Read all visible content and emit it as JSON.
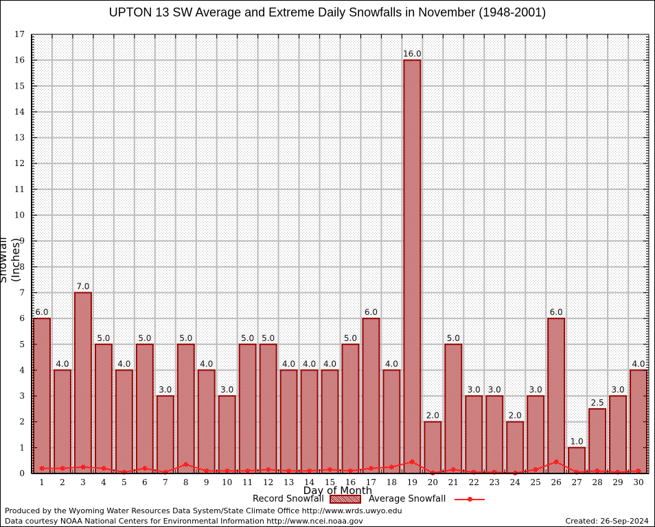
{
  "chart_data": {
    "type": "bar",
    "title": "UPTON 13 SW Average and Extreme Daily Snowfalls in November (1948-2001)",
    "xlabel": "Day of Month",
    "ylabel": "Snowfall (Inches)",
    "ylim": [
      0,
      17
    ],
    "yticks": [
      "0",
      "1",
      "2",
      "3",
      "4",
      "5",
      "6",
      "7",
      "8",
      "9",
      "10",
      "11",
      "12",
      "13",
      "14",
      "15",
      "16",
      "17"
    ],
    "categories": [
      "1",
      "2",
      "3",
      "4",
      "5",
      "6",
      "7",
      "8",
      "9",
      "10",
      "11",
      "12",
      "13",
      "14",
      "15",
      "16",
      "17",
      "18",
      "19",
      "20",
      "21",
      "22",
      "23",
      "24",
      "25",
      "26",
      "27",
      "28",
      "29",
      "30"
    ],
    "grid": true,
    "legend_position": "bottom",
    "series": [
      {
        "name": "Record Snowfall",
        "type": "bar",
        "color": "#990000",
        "values": [
          6.0,
          4.0,
          7.0,
          5.0,
          4.0,
          5.0,
          3.0,
          5.0,
          4.0,
          3.0,
          5.0,
          5.0,
          4.0,
          4.0,
          4.0,
          5.0,
          6.0,
          4.0,
          16.0,
          2.0,
          5.0,
          3.0,
          3.0,
          2.0,
          3.0,
          6.0,
          1.0,
          2.5,
          3.0,
          4.0
        ],
        "labels": [
          "6.0",
          "4.0",
          "7.0",
          "5.0",
          "4.0",
          "5.0",
          "3.0",
          "5.0",
          "4.0",
          "3.0",
          "5.0",
          "5.0",
          "4.0",
          "4.0",
          "4.0",
          "5.0",
          "6.0",
          "4.0",
          "16.0",
          "2.0",
          "5.0",
          "3.0",
          "3.0",
          "2.0",
          "3.0",
          "6.0",
          "1.0",
          "2.5",
          "3.0",
          "4.0"
        ]
      },
      {
        "name": "Average Snowfall",
        "type": "line",
        "color": "#ff2020",
        "values": [
          0.2,
          0.2,
          0.25,
          0.2,
          0.05,
          0.2,
          0.05,
          0.35,
          0.1,
          0.1,
          0.1,
          0.15,
          0.1,
          0.1,
          0.15,
          0.1,
          0.2,
          0.25,
          0.45,
          0.02,
          0.15,
          0.05,
          0.05,
          0.02,
          0.15,
          0.45,
          0.05,
          0.1,
          0.05,
          0.1
        ]
      }
    ]
  },
  "footer": {
    "produced_by": "Produced by the Wyoming Water Resources Data System/State Climate Office http://www.wrds.uwyo.edu",
    "data_courtesy": "Data courtesy NOAA National Centers for Environmental Information http://www.ncei.noaa.gov",
    "created": "Created: 26-Sep-2024"
  }
}
